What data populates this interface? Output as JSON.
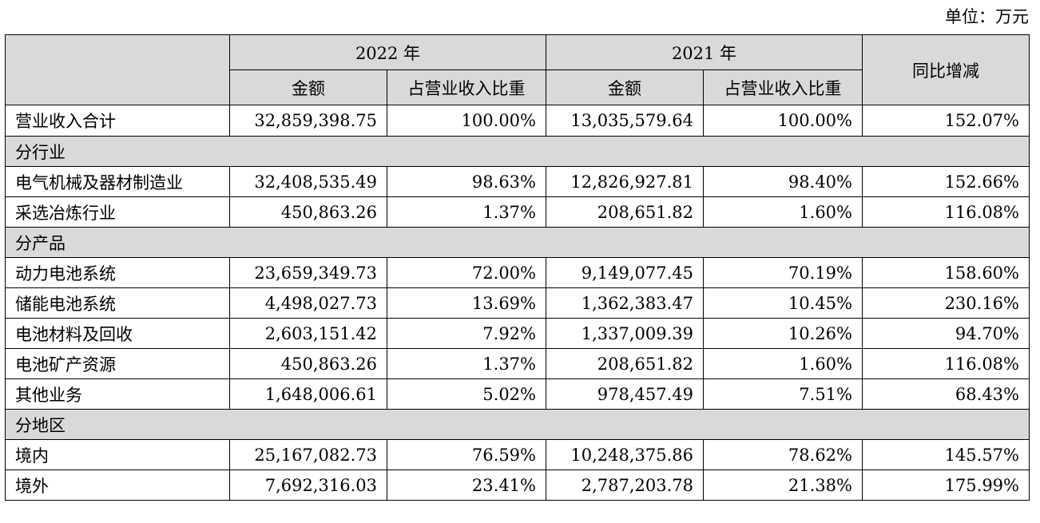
{
  "unit_label": "单位：万元",
  "colors": {
    "header_bg": "#d9d9d9",
    "border": "#000000"
  },
  "header": {
    "year_2022": "2022 年",
    "year_2021": "2021 年",
    "yoy": "同比增减",
    "amount_2022": "金额",
    "ratio_2022": "占营业收入比重",
    "amount_2021": "金额",
    "ratio_2021": "占营业收入比重"
  },
  "total": {
    "label": "营业收入合计",
    "amount_2022": "32,859,398.75",
    "ratio_2022": "100.00%",
    "amount_2021": "13,035,579.64",
    "ratio_2021": "100.00%",
    "yoy": "152.07%"
  },
  "sections": {
    "industry": {
      "title": "分行业",
      "rows": [
        {
          "label": "电气机械及器材制造业",
          "amount_2022": "32,408,535.49",
          "ratio_2022": "98.63%",
          "amount_2021": "12,826,927.81",
          "ratio_2021": "98.40%",
          "yoy": "152.66%"
        },
        {
          "label": "采选冶炼行业",
          "amount_2022": "450,863.26",
          "ratio_2022": "1.37%",
          "amount_2021": "208,651.82",
          "ratio_2021": "1.60%",
          "yoy": "116.08%"
        }
      ]
    },
    "product": {
      "title": "分产品",
      "rows": [
        {
          "label": "动力电池系统",
          "amount_2022": "23,659,349.73",
          "ratio_2022": "72.00%",
          "amount_2021": "9,149,077.45",
          "ratio_2021": "70.19%",
          "yoy": "158.60%"
        },
        {
          "label": "储能电池系统",
          "amount_2022": "4,498,027.73",
          "ratio_2022": "13.69%",
          "amount_2021": "1,362,383.47",
          "ratio_2021": "10.45%",
          "yoy": "230.16%"
        },
        {
          "label": "电池材料及回收",
          "amount_2022": "2,603,151.42",
          "ratio_2022": "7.92%",
          "amount_2021": "1,337,009.39",
          "ratio_2021": "10.26%",
          "yoy": "94.70%"
        },
        {
          "label": "电池矿产资源",
          "amount_2022": "450,863.26",
          "ratio_2022": "1.37%",
          "amount_2021": "208,651.82",
          "ratio_2021": "1.60%",
          "yoy": "116.08%"
        },
        {
          "label": "其他业务",
          "amount_2022": "1,648,006.61",
          "ratio_2022": "5.02%",
          "amount_2021": "978,457.49",
          "ratio_2021": "7.51%",
          "yoy": "68.43%"
        }
      ]
    },
    "region": {
      "title": "分地区",
      "rows": [
        {
          "label": "境内",
          "amount_2022": "25,167,082.73",
          "ratio_2022": "76.59%",
          "amount_2021": "10,248,375.86",
          "ratio_2021": "78.62%",
          "yoy": "145.57%"
        },
        {
          "label": "境外",
          "amount_2022": "7,692,316.03",
          "ratio_2022": "23.41%",
          "amount_2021": "2,787,203.78",
          "ratio_2021": "21.38%",
          "yoy": "175.99%"
        }
      ]
    }
  }
}
